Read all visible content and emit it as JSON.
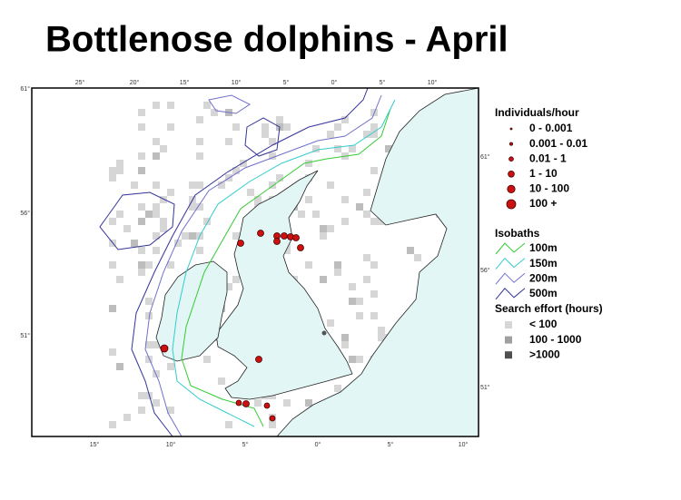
{
  "title": "Bottlenose dolphins - April",
  "map": {
    "top_labels": [
      "25°",
      "20°",
      "15°",
      "10°",
      "5°",
      "0°",
      "5°",
      "10°"
    ],
    "bottom_labels": [
      "15°",
      "10°",
      "5°",
      "0°",
      "5°",
      "10°"
    ],
    "left_labels": [
      "61°",
      "56°",
      "51°"
    ],
    "right_labels": [
      "61°",
      "56°",
      "51°"
    ]
  },
  "legend": {
    "individuals": {
      "title": "Individuals/hour",
      "items": [
        "0 - 0.001",
        "0.001 - 0.01",
        "0.01 - 1",
        "1 - 10",
        "10 - 100",
        "100 +"
      ]
    },
    "isobaths": {
      "title": "Isobaths",
      "items": [
        "100m",
        "150m",
        "200m",
        "500m"
      ]
    },
    "effort": {
      "title": "Search effort (hours)",
      "items": [
        "< 100",
        "100 - 1000",
        ">1000"
      ]
    }
  }
}
